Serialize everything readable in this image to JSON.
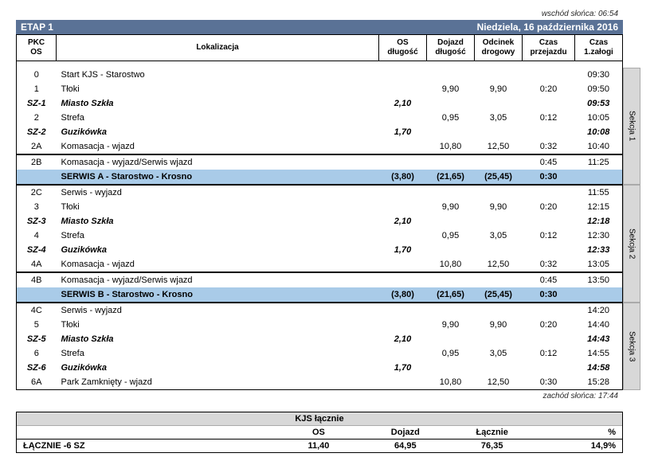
{
  "sunrise_label": "wschód słońca: 06:54",
  "sunset_label": "zachód słońca: 17:44",
  "stage": {
    "left": "ETAP 1",
    "right": "Niedziela, 16 października 2016"
  },
  "headers": {
    "pkc": "PKC\nOS",
    "loc": "Lokalizacja",
    "os": "OS\ndługość",
    "doj": "Dojazd\ndługość",
    "odc": "Odcinek\ndrogowy",
    "cp": "Czas\nprzejazdu",
    "cz": "Czas\n1.załogi"
  },
  "rows": [
    {
      "pkc": "0",
      "loc": "Start KJS - Starostwo",
      "cz": "09:30"
    },
    {
      "pkc": "1",
      "loc": "Tłoki",
      "doj": "9,90",
      "odc": "9,90",
      "cp": "0:20",
      "cz": "09:50"
    },
    {
      "pkc": "SZ-1",
      "loc": "Miasto Szkła",
      "bold": true,
      "os": "2,10",
      "cz": "09:53"
    },
    {
      "pkc": "2",
      "loc": "Strefa",
      "doj": "0,95",
      "odc": "3,05",
      "cp": "0:12",
      "cz": "10:05"
    },
    {
      "pkc": "SZ-2",
      "loc": "Guzikówka",
      "bold": true,
      "os": "1,70",
      "cz": "10:08"
    },
    {
      "pkc": "2A",
      "loc": "Komasacja - wjazd",
      "doj": "10,80",
      "odc": "12,50",
      "cp": "0:32",
      "cz": "10:40"
    },
    {
      "pkc": "2B",
      "loc": "Komasacja - wyjazd/Serwis wjazd",
      "cp": "0:45",
      "cz": "11:25",
      "topline": true
    },
    {
      "pkc": "",
      "loc": "SERWIS A - Starostwo - Krosno",
      "service": true,
      "os": "(3,80)",
      "doj": "(21,65)",
      "odc": "(25,45)",
      "cp": "0:30",
      "botline": true
    },
    {
      "pkc": "2C",
      "loc": "Serwis - wyjazd",
      "cz": "11:55"
    },
    {
      "pkc": "3",
      "loc": "Tłoki",
      "doj": "9,90",
      "odc": "9,90",
      "cp": "0:20",
      "cz": "12:15"
    },
    {
      "pkc": "SZ-3",
      "loc": "Miasto Szkła",
      "bold": true,
      "os": "2,10",
      "cz": "12:18"
    },
    {
      "pkc": "4",
      "loc": "Strefa",
      "doj": "0,95",
      "odc": "3,05",
      "cp": "0:12",
      "cz": "12:30"
    },
    {
      "pkc": "SZ-4",
      "loc": "Guzikówka",
      "bold": true,
      "os": "1,70",
      "cz": "12:33"
    },
    {
      "pkc": "4A",
      "loc": "Komasacja - wjazd",
      "doj": "10,80",
      "odc": "12,50",
      "cp": "0:32",
      "cz": "13:05"
    },
    {
      "pkc": "4B",
      "loc": "Komasacja - wyjazd/Serwis wjazd",
      "cp": "0:45",
      "cz": "13:50",
      "topline": true
    },
    {
      "pkc": "",
      "loc": "SERWIS B - Starostwo - Krosno",
      "service": true,
      "os": "(3,80)",
      "doj": "(21,65)",
      "odc": "(25,45)",
      "cp": "0:30",
      "botline": true
    },
    {
      "pkc": "4C",
      "loc": "Serwis - wyjazd",
      "cz": "14:20"
    },
    {
      "pkc": "5",
      "loc": "Tłoki",
      "doj": "9,90",
      "odc": "9,90",
      "cp": "0:20",
      "cz": "14:40"
    },
    {
      "pkc": "SZ-5",
      "loc": "Miasto Szkła",
      "bold": true,
      "os": "2,10",
      "cz": "14:43"
    },
    {
      "pkc": "6",
      "loc": "Strefa",
      "doj": "0,95",
      "odc": "3,05",
      "cp": "0:12",
      "cz": "14:55"
    },
    {
      "pkc": "SZ-6",
      "loc": "Guzikówka",
      "bold": true,
      "os": "1,70",
      "cz": "14:58"
    },
    {
      "pkc": "6A",
      "loc": "Park Zamknięty - wjazd",
      "doj": "10,80",
      "odc": "12,50",
      "cp": "0:30",
      "cz": "15:28"
    }
  ],
  "sections": [
    {
      "label": "Sekcja 1",
      "from": 0,
      "to": 7
    },
    {
      "label": "Sekcja 2",
      "from": 8,
      "to": 15
    },
    {
      "label": "Sekcja 3",
      "from": 16,
      "to": 21
    }
  ],
  "summary": {
    "title": "KJS łącznie",
    "cols": [
      "OS",
      "Dojazd",
      "Łącznie",
      "%"
    ],
    "row_label": "ŁĄCZNIE -6 SZ",
    "vals": [
      "11,40",
      "64,95",
      "76,35",
      "14,9%"
    ]
  },
  "colors": {
    "header_bg": "#5a7296",
    "service_bg": "#a9cbe8",
    "tab_bg": "#d8d8d8"
  }
}
